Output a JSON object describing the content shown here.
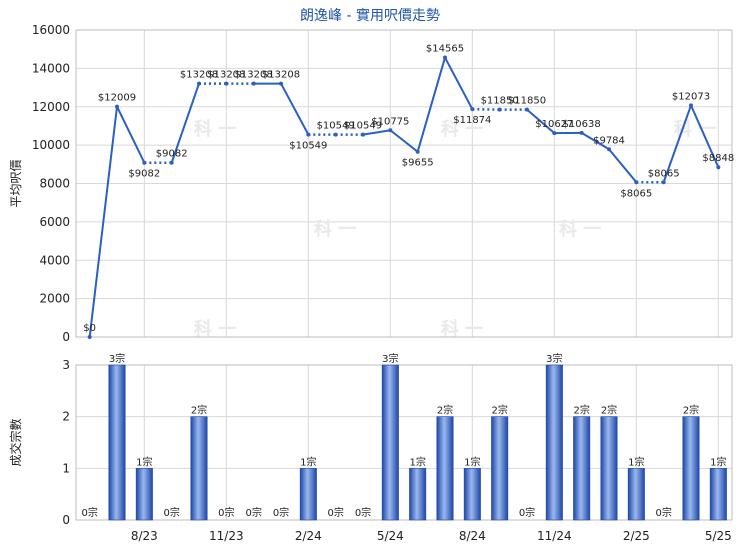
{
  "title": "朗逸峰 - 實用呎價走勢",
  "chart_data": [
    {
      "type": "line",
      "ylabel": "平均呎價",
      "ylim": [
        0,
        16000
      ],
      "yticks": [
        "0",
        "2000",
        "4000",
        "6000",
        "8000",
        "10000",
        "12000",
        "14000",
        "16000"
      ],
      "xticks": [
        {
          "idx": 2,
          "label": "8/23"
        },
        {
          "idx": 5,
          "label": "11/23"
        },
        {
          "idx": 8,
          "label": "2/24"
        },
        {
          "idx": 11,
          "label": "5/24"
        },
        {
          "idx": 14,
          "label": "8/24"
        },
        {
          "idx": 17,
          "label": "11/24"
        },
        {
          "idx": 20,
          "label": "2/25"
        },
        {
          "idx": 23,
          "label": "5/25"
        }
      ],
      "values": [
        0,
        12009,
        9082,
        9082,
        13208,
        13208,
        13208,
        13208,
        10549,
        10549,
        10549,
        10775,
        9655,
        14565,
        11874,
        11850,
        11850,
        10627,
        10638,
        9784,
        8065,
        8065,
        12073,
        8848
      ],
      "labels": [
        "$0",
        "$12009",
        "$9082",
        "$9082",
        "$13208",
        "$13208",
        "$13208",
        "$13208",
        "$10549",
        "$10549",
        "$10549",
        "$10775",
        "$9655",
        "$14565",
        "$11874",
        "$11850",
        "$11850",
        "$10627",
        "$10638",
        "$9784",
        "$8065",
        "$8065",
        "$12073",
        "$8848"
      ],
      "estimated": [
        false,
        false,
        false,
        true,
        false,
        true,
        true,
        false,
        false,
        true,
        true,
        false,
        false,
        false,
        false,
        true,
        true,
        false,
        false,
        false,
        false,
        true,
        false,
        false
      ],
      "color": "#2a5fc4"
    },
    {
      "type": "bar",
      "ylabel": "成交宗數",
      "ylim": [
        0,
        3
      ],
      "yticks": [
        "0",
        "1",
        "2",
        "3"
      ],
      "values": [
        0,
        3,
        1,
        0,
        2,
        0,
        0,
        0,
        1,
        0,
        0,
        3,
        1,
        2,
        1,
        2,
        0,
        3,
        2,
        2,
        1,
        0,
        2,
        1
      ],
      "labels": [
        "0宗",
        "3宗",
        "1宗",
        "0宗",
        "2宗",
        "0宗",
        "0宗",
        "0宗",
        "1宗",
        "0宗",
        "0宗",
        "3宗",
        "1宗",
        "2宗",
        "1宗",
        "2宗",
        "0宗",
        "3宗",
        "2宗",
        "2宗",
        "1宗",
        "0宗",
        "2宗",
        "1宗"
      ],
      "color": "#2a5fc4"
    }
  ]
}
